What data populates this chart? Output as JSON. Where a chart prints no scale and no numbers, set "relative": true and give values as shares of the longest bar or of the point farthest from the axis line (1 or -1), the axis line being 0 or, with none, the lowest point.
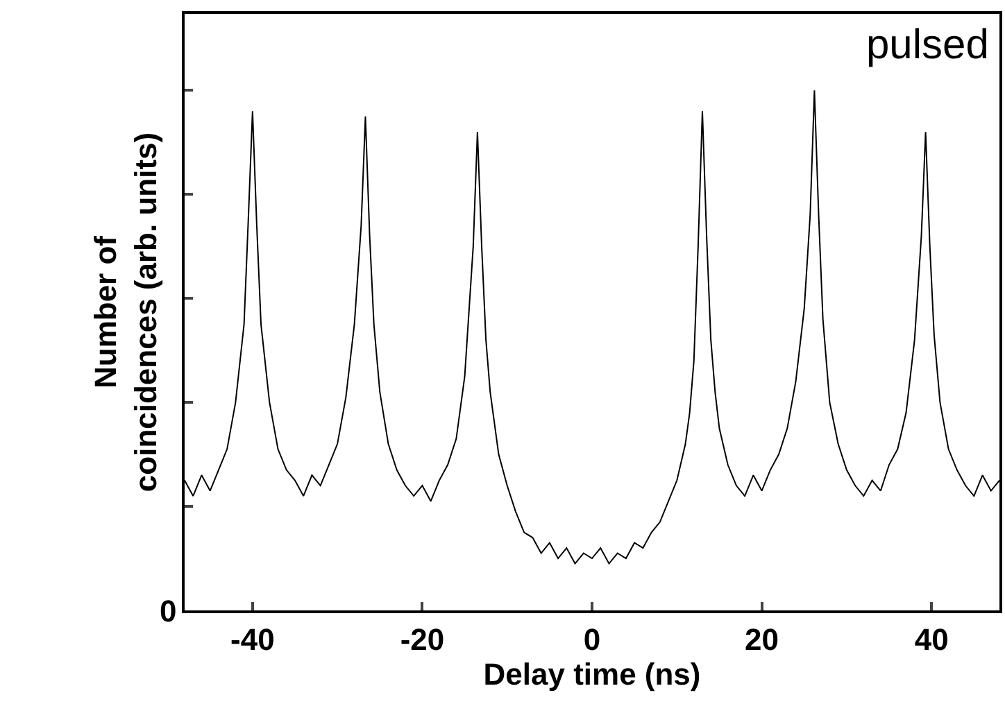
{
  "chart_data": {
    "type": "line",
    "relative": true,
    "xlabel": "Delay time (ns)",
    "ylabel": "Number of\ncoincidences (arb. units)",
    "xlim": [
      -48,
      48
    ],
    "xticks": [
      -40,
      -20,
      0,
      20,
      40
    ],
    "annotations": [
      "pulsed",
      "0"
    ],
    "series": [
      {
        "color": "#000000",
        "x": [
          -48,
          -47,
          -46,
          -45,
          -44,
          -43,
          -42,
          -41,
          -40.5,
          -40,
          -39.5,
          -39,
          -38,
          -37,
          -36,
          -35,
          -34,
          -33,
          -32,
          -31,
          -30,
          -29,
          -28,
          -27.2,
          -26.7,
          -26.2,
          -25.7,
          -25,
          -24,
          -23,
          -22,
          -21,
          -20,
          -19,
          -18,
          -17,
          -16,
          -15,
          -14,
          -13.5,
          -13,
          -12.5,
          -12,
          -11,
          -10,
          -9,
          -8,
          -7,
          -6,
          -5,
          -4,
          -3,
          -2,
          -1,
          0,
          1,
          2,
          3,
          4,
          5,
          6,
          7,
          8,
          9,
          10,
          11,
          11.5,
          12,
          12.5,
          13,
          13.5,
          14,
          14.5,
          15,
          16,
          17,
          18,
          19,
          20,
          21,
          22,
          23,
          24,
          25,
          25.7,
          26.2,
          26.7,
          27.2,
          28,
          29,
          30,
          31,
          32,
          33,
          34,
          35,
          36,
          37,
          38,
          38.8,
          39.3,
          39.8,
          40.3,
          41,
          42,
          43,
          44,
          45,
          46,
          47,
          48
        ],
        "values": [
          0.25,
          0.22,
          0.26,
          0.23,
          0.27,
          0.31,
          0.4,
          0.55,
          0.75,
          0.96,
          0.74,
          0.55,
          0.4,
          0.31,
          0.27,
          0.25,
          0.22,
          0.26,
          0.24,
          0.28,
          0.32,
          0.41,
          0.55,
          0.74,
          0.95,
          0.72,
          0.55,
          0.42,
          0.32,
          0.27,
          0.24,
          0.22,
          0.24,
          0.21,
          0.25,
          0.28,
          0.33,
          0.45,
          0.7,
          0.92,
          0.7,
          0.52,
          0.42,
          0.3,
          0.24,
          0.19,
          0.15,
          0.14,
          0.11,
          0.13,
          0.1,
          0.12,
          0.09,
          0.11,
          0.1,
          0.12,
          0.09,
          0.11,
          0.1,
          0.13,
          0.12,
          0.15,
          0.17,
          0.21,
          0.25,
          0.32,
          0.38,
          0.48,
          0.7,
          0.96,
          0.72,
          0.52,
          0.42,
          0.35,
          0.28,
          0.24,
          0.22,
          0.26,
          0.23,
          0.27,
          0.3,
          0.35,
          0.44,
          0.58,
          0.76,
          1.0,
          0.76,
          0.56,
          0.4,
          0.32,
          0.27,
          0.24,
          0.22,
          0.25,
          0.23,
          0.28,
          0.31,
          0.38,
          0.52,
          0.72,
          0.92,
          0.7,
          0.53,
          0.4,
          0.31,
          0.27,
          0.24,
          0.22,
          0.26,
          0.23,
          0.25
        ]
      }
    ]
  }
}
